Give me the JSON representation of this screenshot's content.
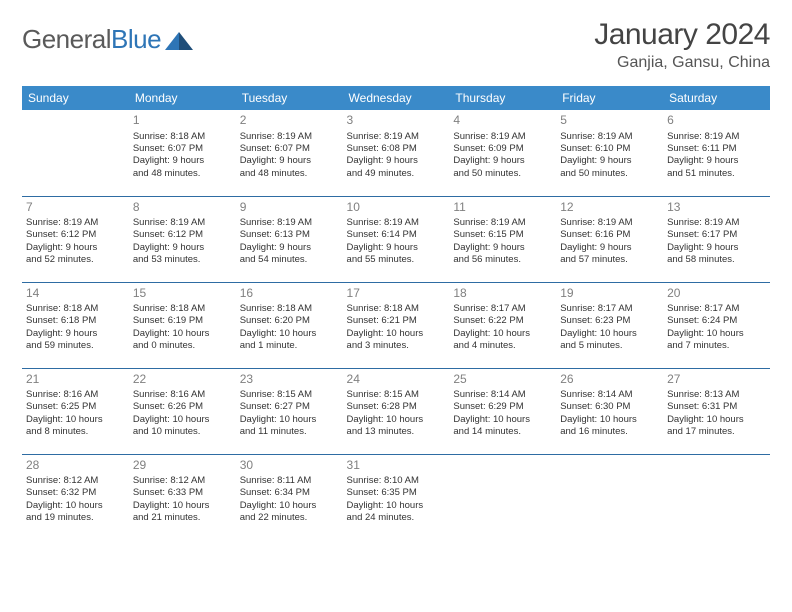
{
  "logo": {
    "word1": "General",
    "word2": "Blue"
  },
  "title": "January 2024",
  "location": "Ganjia, Gansu, China",
  "colors": {
    "header_bg": "#3a8ac9",
    "header_text": "#ffffff",
    "row_divider": "#2e6ca3",
    "daynum": "#808080",
    "body_text": "#333333",
    "logo_gray": "#5a5a5a",
    "logo_blue": "#2e75b6",
    "title_color": "#444444",
    "location_color": "#555555",
    "page_bg": "#ffffff"
  },
  "weekdays": [
    "Sunday",
    "Monday",
    "Tuesday",
    "Wednesday",
    "Thursday",
    "Friday",
    "Saturday"
  ],
  "weeks": [
    [
      null,
      {
        "d": "1",
        "sr": "Sunrise: 8:18 AM",
        "ss": "Sunset: 6:07 PM",
        "dl1": "Daylight: 9 hours",
        "dl2": "and 48 minutes."
      },
      {
        "d": "2",
        "sr": "Sunrise: 8:19 AM",
        "ss": "Sunset: 6:07 PM",
        "dl1": "Daylight: 9 hours",
        "dl2": "and 48 minutes."
      },
      {
        "d": "3",
        "sr": "Sunrise: 8:19 AM",
        "ss": "Sunset: 6:08 PM",
        "dl1": "Daylight: 9 hours",
        "dl2": "and 49 minutes."
      },
      {
        "d": "4",
        "sr": "Sunrise: 8:19 AM",
        "ss": "Sunset: 6:09 PM",
        "dl1": "Daylight: 9 hours",
        "dl2": "and 50 minutes."
      },
      {
        "d": "5",
        "sr": "Sunrise: 8:19 AM",
        "ss": "Sunset: 6:10 PM",
        "dl1": "Daylight: 9 hours",
        "dl2": "and 50 minutes."
      },
      {
        "d": "6",
        "sr": "Sunrise: 8:19 AM",
        "ss": "Sunset: 6:11 PM",
        "dl1": "Daylight: 9 hours",
        "dl2": "and 51 minutes."
      }
    ],
    [
      {
        "d": "7",
        "sr": "Sunrise: 8:19 AM",
        "ss": "Sunset: 6:12 PM",
        "dl1": "Daylight: 9 hours",
        "dl2": "and 52 minutes."
      },
      {
        "d": "8",
        "sr": "Sunrise: 8:19 AM",
        "ss": "Sunset: 6:12 PM",
        "dl1": "Daylight: 9 hours",
        "dl2": "and 53 minutes."
      },
      {
        "d": "9",
        "sr": "Sunrise: 8:19 AM",
        "ss": "Sunset: 6:13 PM",
        "dl1": "Daylight: 9 hours",
        "dl2": "and 54 minutes."
      },
      {
        "d": "10",
        "sr": "Sunrise: 8:19 AM",
        "ss": "Sunset: 6:14 PM",
        "dl1": "Daylight: 9 hours",
        "dl2": "and 55 minutes."
      },
      {
        "d": "11",
        "sr": "Sunrise: 8:19 AM",
        "ss": "Sunset: 6:15 PM",
        "dl1": "Daylight: 9 hours",
        "dl2": "and 56 minutes."
      },
      {
        "d": "12",
        "sr": "Sunrise: 8:19 AM",
        "ss": "Sunset: 6:16 PM",
        "dl1": "Daylight: 9 hours",
        "dl2": "and 57 minutes."
      },
      {
        "d": "13",
        "sr": "Sunrise: 8:19 AM",
        "ss": "Sunset: 6:17 PM",
        "dl1": "Daylight: 9 hours",
        "dl2": "and 58 minutes."
      }
    ],
    [
      {
        "d": "14",
        "sr": "Sunrise: 8:18 AM",
        "ss": "Sunset: 6:18 PM",
        "dl1": "Daylight: 9 hours",
        "dl2": "and 59 minutes."
      },
      {
        "d": "15",
        "sr": "Sunrise: 8:18 AM",
        "ss": "Sunset: 6:19 PM",
        "dl1": "Daylight: 10 hours",
        "dl2": "and 0 minutes."
      },
      {
        "d": "16",
        "sr": "Sunrise: 8:18 AM",
        "ss": "Sunset: 6:20 PM",
        "dl1": "Daylight: 10 hours",
        "dl2": "and 1 minute."
      },
      {
        "d": "17",
        "sr": "Sunrise: 8:18 AM",
        "ss": "Sunset: 6:21 PM",
        "dl1": "Daylight: 10 hours",
        "dl2": "and 3 minutes."
      },
      {
        "d": "18",
        "sr": "Sunrise: 8:17 AM",
        "ss": "Sunset: 6:22 PM",
        "dl1": "Daylight: 10 hours",
        "dl2": "and 4 minutes."
      },
      {
        "d": "19",
        "sr": "Sunrise: 8:17 AM",
        "ss": "Sunset: 6:23 PM",
        "dl1": "Daylight: 10 hours",
        "dl2": "and 5 minutes."
      },
      {
        "d": "20",
        "sr": "Sunrise: 8:17 AM",
        "ss": "Sunset: 6:24 PM",
        "dl1": "Daylight: 10 hours",
        "dl2": "and 7 minutes."
      }
    ],
    [
      {
        "d": "21",
        "sr": "Sunrise: 8:16 AM",
        "ss": "Sunset: 6:25 PM",
        "dl1": "Daylight: 10 hours",
        "dl2": "and 8 minutes."
      },
      {
        "d": "22",
        "sr": "Sunrise: 8:16 AM",
        "ss": "Sunset: 6:26 PM",
        "dl1": "Daylight: 10 hours",
        "dl2": "and 10 minutes."
      },
      {
        "d": "23",
        "sr": "Sunrise: 8:15 AM",
        "ss": "Sunset: 6:27 PM",
        "dl1": "Daylight: 10 hours",
        "dl2": "and 11 minutes."
      },
      {
        "d": "24",
        "sr": "Sunrise: 8:15 AM",
        "ss": "Sunset: 6:28 PM",
        "dl1": "Daylight: 10 hours",
        "dl2": "and 13 minutes."
      },
      {
        "d": "25",
        "sr": "Sunrise: 8:14 AM",
        "ss": "Sunset: 6:29 PM",
        "dl1": "Daylight: 10 hours",
        "dl2": "and 14 minutes."
      },
      {
        "d": "26",
        "sr": "Sunrise: 8:14 AM",
        "ss": "Sunset: 6:30 PM",
        "dl1": "Daylight: 10 hours",
        "dl2": "and 16 minutes."
      },
      {
        "d": "27",
        "sr": "Sunrise: 8:13 AM",
        "ss": "Sunset: 6:31 PM",
        "dl1": "Daylight: 10 hours",
        "dl2": "and 17 minutes."
      }
    ],
    [
      {
        "d": "28",
        "sr": "Sunrise: 8:12 AM",
        "ss": "Sunset: 6:32 PM",
        "dl1": "Daylight: 10 hours",
        "dl2": "and 19 minutes."
      },
      {
        "d": "29",
        "sr": "Sunrise: 8:12 AM",
        "ss": "Sunset: 6:33 PM",
        "dl1": "Daylight: 10 hours",
        "dl2": "and 21 minutes."
      },
      {
        "d": "30",
        "sr": "Sunrise: 8:11 AM",
        "ss": "Sunset: 6:34 PM",
        "dl1": "Daylight: 10 hours",
        "dl2": "and 22 minutes."
      },
      {
        "d": "31",
        "sr": "Sunrise: 8:10 AM",
        "ss": "Sunset: 6:35 PM",
        "dl1": "Daylight: 10 hours",
        "dl2": "and 24 minutes."
      },
      null,
      null,
      null
    ]
  ]
}
